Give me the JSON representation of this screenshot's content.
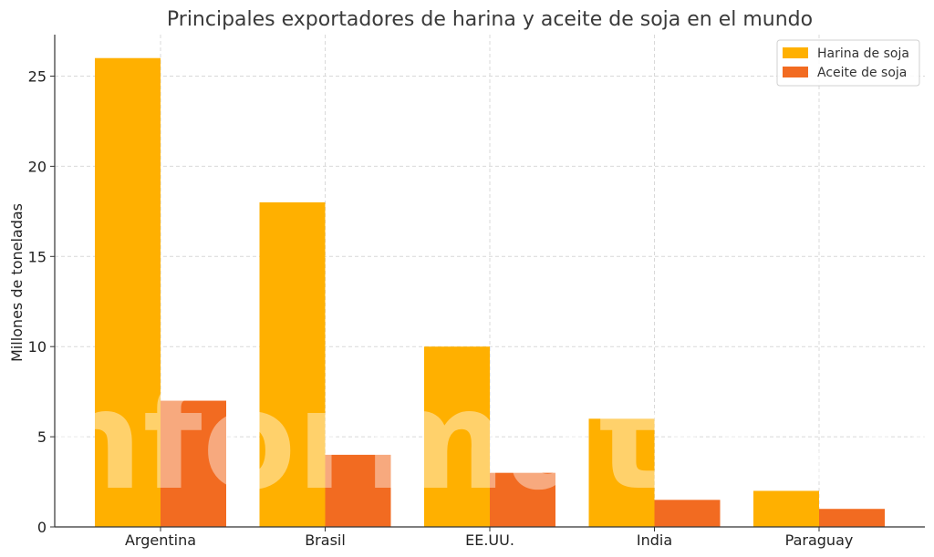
{
  "chart_data": {
    "type": "bar",
    "title": "Principales exportadores de harina y aceite de soja en el mundo",
    "xlabel": "",
    "ylabel": "Millones de toneladas",
    "categories": [
      "Argentina",
      "Brasil",
      "EE.UU.",
      "India",
      "Paraguay"
    ],
    "series": [
      {
        "name": "Harina de soja",
        "values": [
          26,
          18,
          10,
          6,
          2
        ],
        "color": "#FFB000"
      },
      {
        "name": "Aceite de soja",
        "values": [
          7,
          4,
          3,
          1.5,
          1
        ],
        "color": "#F26B21"
      }
    ],
    "yticks": [
      "0",
      "5",
      "10",
      "15",
      "20",
      "25"
    ],
    "ylim": [
      0,
      27.3
    ],
    "grid": true,
    "legend_position": "top-right"
  },
  "watermark": "informate.ar"
}
